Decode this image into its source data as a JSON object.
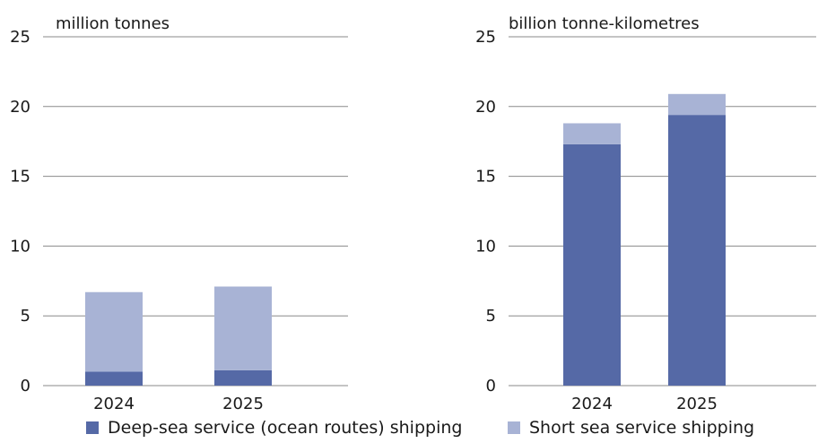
{
  "chart_data": [
    {
      "type": "bar",
      "stacked": true,
      "unit_label": "million tonnes",
      "categories": [
        "2024",
        "2025"
      ],
      "yticks": [
        "0",
        "5",
        "10",
        "15",
        "20",
        "25"
      ],
      "ylim": [
        0,
        25
      ],
      "grid": true,
      "series": [
        {
          "name": "Deep-sea service (ocean routes) shipping",
          "values": [
            1.0,
            1.1
          ]
        },
        {
          "name": "Short sea service shipping",
          "values": [
            5.7,
            6.0
          ]
        }
      ]
    },
    {
      "type": "bar",
      "stacked": true,
      "unit_label": "billion tonne-kilometres",
      "categories": [
        "2024",
        "2025"
      ],
      "yticks": [
        "0",
        "5",
        "10",
        "15",
        "20",
        "25"
      ],
      "ylim": [
        0,
        25
      ],
      "grid": true,
      "series": [
        {
          "name": "Deep-sea service (ocean routes) shipping",
          "values": [
            17.3,
            19.4
          ]
        },
        {
          "name": "Short sea service shipping",
          "values": [
            1.5,
            1.5
          ]
        }
      ]
    }
  ],
  "legend": {
    "placement": "bottom",
    "items": [
      {
        "label": "Deep-sea service (ocean routes) shipping",
        "color": "#5569a6"
      },
      {
        "label": "Short sea service shipping",
        "color": "#a8b3d5"
      }
    ]
  }
}
